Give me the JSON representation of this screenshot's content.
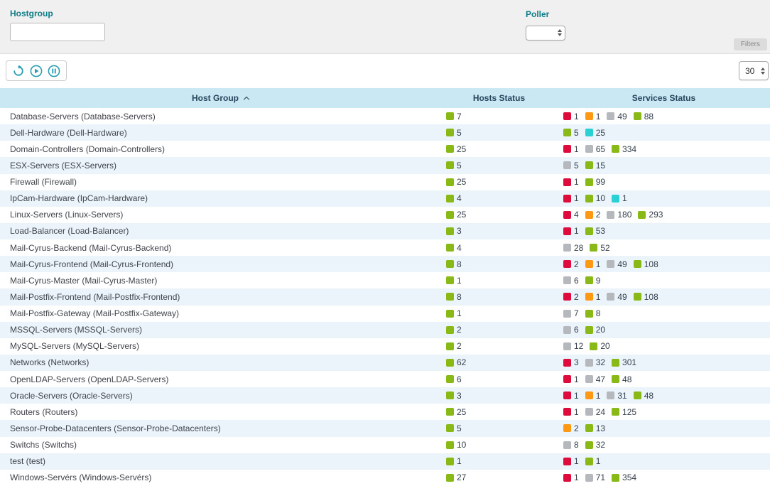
{
  "filter_panel": {
    "hostgroup": {
      "label": "Hostgroup",
      "value": "",
      "placeholder": ""
    },
    "poller": {
      "label": "Poller",
      "value": ""
    },
    "filters_button": "Filters"
  },
  "toolbar": {
    "icons": [
      "refresh-icon",
      "play-icon",
      "pause-icon"
    ],
    "rows_per_page": "30"
  },
  "table": {
    "columns": {
      "host_group": "Host Group",
      "hosts_status": "Hosts Status",
      "services_status": "Services Status"
    },
    "sort": {
      "column": "Host Group",
      "direction": "asc"
    },
    "rows": [
      {
        "name": "Database-Servers (Database-Servers)",
        "hosts": [
          {
            "status": "ok",
            "count": "7"
          }
        ],
        "services": [
          {
            "status": "critical",
            "count": "1"
          },
          {
            "status": "warning",
            "count": "1"
          },
          {
            "status": "unknown",
            "count": "49"
          },
          {
            "status": "ok",
            "count": "88"
          }
        ]
      },
      {
        "name": "Dell-Hardware (Dell-Hardware)",
        "hosts": [
          {
            "status": "ok",
            "count": "5"
          }
        ],
        "services": [
          {
            "status": "ok",
            "count": "5"
          },
          {
            "status": "pending",
            "count": "25"
          }
        ]
      },
      {
        "name": "Domain-Controllers (Domain-Controllers)",
        "hosts": [
          {
            "status": "ok",
            "count": "25"
          }
        ],
        "services": [
          {
            "status": "critical",
            "count": "1"
          },
          {
            "status": "unknown",
            "count": "65"
          },
          {
            "status": "ok",
            "count": "334"
          }
        ]
      },
      {
        "name": "ESX-Servers (ESX-Servers)",
        "hosts": [
          {
            "status": "ok",
            "count": "5"
          }
        ],
        "services": [
          {
            "status": "unknown",
            "count": "5"
          },
          {
            "status": "ok",
            "count": "15"
          }
        ]
      },
      {
        "name": "Firewall (Firewall)",
        "hosts": [
          {
            "status": "ok",
            "count": "25"
          }
        ],
        "services": [
          {
            "status": "critical",
            "count": "1"
          },
          {
            "status": "ok",
            "count": "99"
          }
        ]
      },
      {
        "name": "IpCam-Hardware (IpCam-Hardware)",
        "hosts": [
          {
            "status": "ok",
            "count": "4"
          }
        ],
        "services": [
          {
            "status": "critical",
            "count": "1"
          },
          {
            "status": "ok",
            "count": "10"
          },
          {
            "status": "pending",
            "count": "1"
          }
        ]
      },
      {
        "name": "Linux-Servers (Linux-Servers)",
        "hosts": [
          {
            "status": "ok",
            "count": "25"
          }
        ],
        "services": [
          {
            "status": "critical",
            "count": "4"
          },
          {
            "status": "warning",
            "count": "2"
          },
          {
            "status": "unknown",
            "count": "180"
          },
          {
            "status": "ok",
            "count": "293"
          }
        ]
      },
      {
        "name": "Load-Balancer (Load-Balancer)",
        "hosts": [
          {
            "status": "ok",
            "count": "3"
          }
        ],
        "services": [
          {
            "status": "critical",
            "count": "1"
          },
          {
            "status": "ok",
            "count": "53"
          }
        ]
      },
      {
        "name": "Mail-Cyrus-Backend (Mail-Cyrus-Backend)",
        "hosts": [
          {
            "status": "ok",
            "count": "4"
          }
        ],
        "services": [
          {
            "status": "unknown",
            "count": "28"
          },
          {
            "status": "ok",
            "count": "52"
          }
        ]
      },
      {
        "name": "Mail-Cyrus-Frontend (Mail-Cyrus-Frontend)",
        "hosts": [
          {
            "status": "ok",
            "count": "8"
          }
        ],
        "services": [
          {
            "status": "critical",
            "count": "2"
          },
          {
            "status": "warning",
            "count": "1"
          },
          {
            "status": "unknown",
            "count": "49"
          },
          {
            "status": "ok",
            "count": "108"
          }
        ]
      },
      {
        "name": "Mail-Cyrus-Master (Mail-Cyrus-Master)",
        "hosts": [
          {
            "status": "ok",
            "count": "1"
          }
        ],
        "services": [
          {
            "status": "unknown",
            "count": "6"
          },
          {
            "status": "ok",
            "count": "9"
          }
        ]
      },
      {
        "name": "Mail-Postfix-Frontend (Mail-Postfix-Frontend)",
        "hosts": [
          {
            "status": "ok",
            "count": "8"
          }
        ],
        "services": [
          {
            "status": "critical",
            "count": "2"
          },
          {
            "status": "warning",
            "count": "1"
          },
          {
            "status": "unknown",
            "count": "49"
          },
          {
            "status": "ok",
            "count": "108"
          }
        ]
      },
      {
        "name": "Mail-Postfix-Gateway (Mail-Postfix-Gateway)",
        "hosts": [
          {
            "status": "ok",
            "count": "1"
          }
        ],
        "services": [
          {
            "status": "unknown",
            "count": "7"
          },
          {
            "status": "ok",
            "count": "8"
          }
        ]
      },
      {
        "name": "MSSQL-Servers (MSSQL-Servers)",
        "hosts": [
          {
            "status": "ok",
            "count": "2"
          }
        ],
        "services": [
          {
            "status": "unknown",
            "count": "6"
          },
          {
            "status": "ok",
            "count": "20"
          }
        ]
      },
      {
        "name": "MySQL-Servers (MySQL-Servers)",
        "hosts": [
          {
            "status": "ok",
            "count": "2"
          }
        ],
        "services": [
          {
            "status": "unknown",
            "count": "12"
          },
          {
            "status": "ok",
            "count": "20"
          }
        ]
      },
      {
        "name": "Networks (Networks)",
        "hosts": [
          {
            "status": "ok",
            "count": "62"
          }
        ],
        "services": [
          {
            "status": "critical",
            "count": "3"
          },
          {
            "status": "unknown",
            "count": "32"
          },
          {
            "status": "ok",
            "count": "301"
          }
        ]
      },
      {
        "name": "OpenLDAP-Servers (OpenLDAP-Servers)",
        "hosts": [
          {
            "status": "ok",
            "count": "6"
          }
        ],
        "services": [
          {
            "status": "critical",
            "count": "1"
          },
          {
            "status": "unknown",
            "count": "47"
          },
          {
            "status": "ok",
            "count": "48"
          }
        ]
      },
      {
        "name": "Oracle-Servers (Oracle-Servers)",
        "hosts": [
          {
            "status": "ok",
            "count": "3"
          }
        ],
        "services": [
          {
            "status": "critical",
            "count": "1"
          },
          {
            "status": "warning",
            "count": "1"
          },
          {
            "status": "unknown",
            "count": "31"
          },
          {
            "status": "ok",
            "count": "48"
          }
        ]
      },
      {
        "name": "Routers (Routers)",
        "hosts": [
          {
            "status": "ok",
            "count": "25"
          }
        ],
        "services": [
          {
            "status": "critical",
            "count": "1"
          },
          {
            "status": "unknown",
            "count": "24"
          },
          {
            "status": "ok",
            "count": "125"
          }
        ]
      },
      {
        "name": "Sensor-Probe-Datacenters (Sensor-Probe-Datacenters)",
        "hosts": [
          {
            "status": "ok",
            "count": "5"
          }
        ],
        "services": [
          {
            "status": "warning",
            "count": "2"
          },
          {
            "status": "ok",
            "count": "13"
          }
        ]
      },
      {
        "name": "Switchs (Switchs)",
        "hosts": [
          {
            "status": "ok",
            "count": "10"
          }
        ],
        "services": [
          {
            "status": "unknown",
            "count": "8"
          },
          {
            "status": "ok",
            "count": "32"
          }
        ]
      },
      {
        "name": "test (test)",
        "hosts": [
          {
            "status": "ok",
            "count": "1"
          }
        ],
        "services": [
          {
            "status": "critical",
            "count": "1"
          },
          {
            "status": "ok",
            "count": "1"
          }
        ]
      },
      {
        "name": "Windows-Servérs (Windows-Servérs)",
        "hosts": [
          {
            "status": "ok",
            "count": "27"
          }
        ],
        "services": [
          {
            "status": "critical",
            "count": "1"
          },
          {
            "status": "unknown",
            "count": "71"
          },
          {
            "status": "ok",
            "count": "354"
          }
        ]
      }
    ]
  },
  "colors": {
    "ok": "#88B917",
    "critical": "#E00B3D",
    "warning": "#FF9913",
    "unknown": "#B5B8BD",
    "pending": "#2AD1D4",
    "accent_teal": "#0e7c86",
    "icon_teal": "#2b9eb3",
    "header_bg": "#c9e8f4"
  }
}
